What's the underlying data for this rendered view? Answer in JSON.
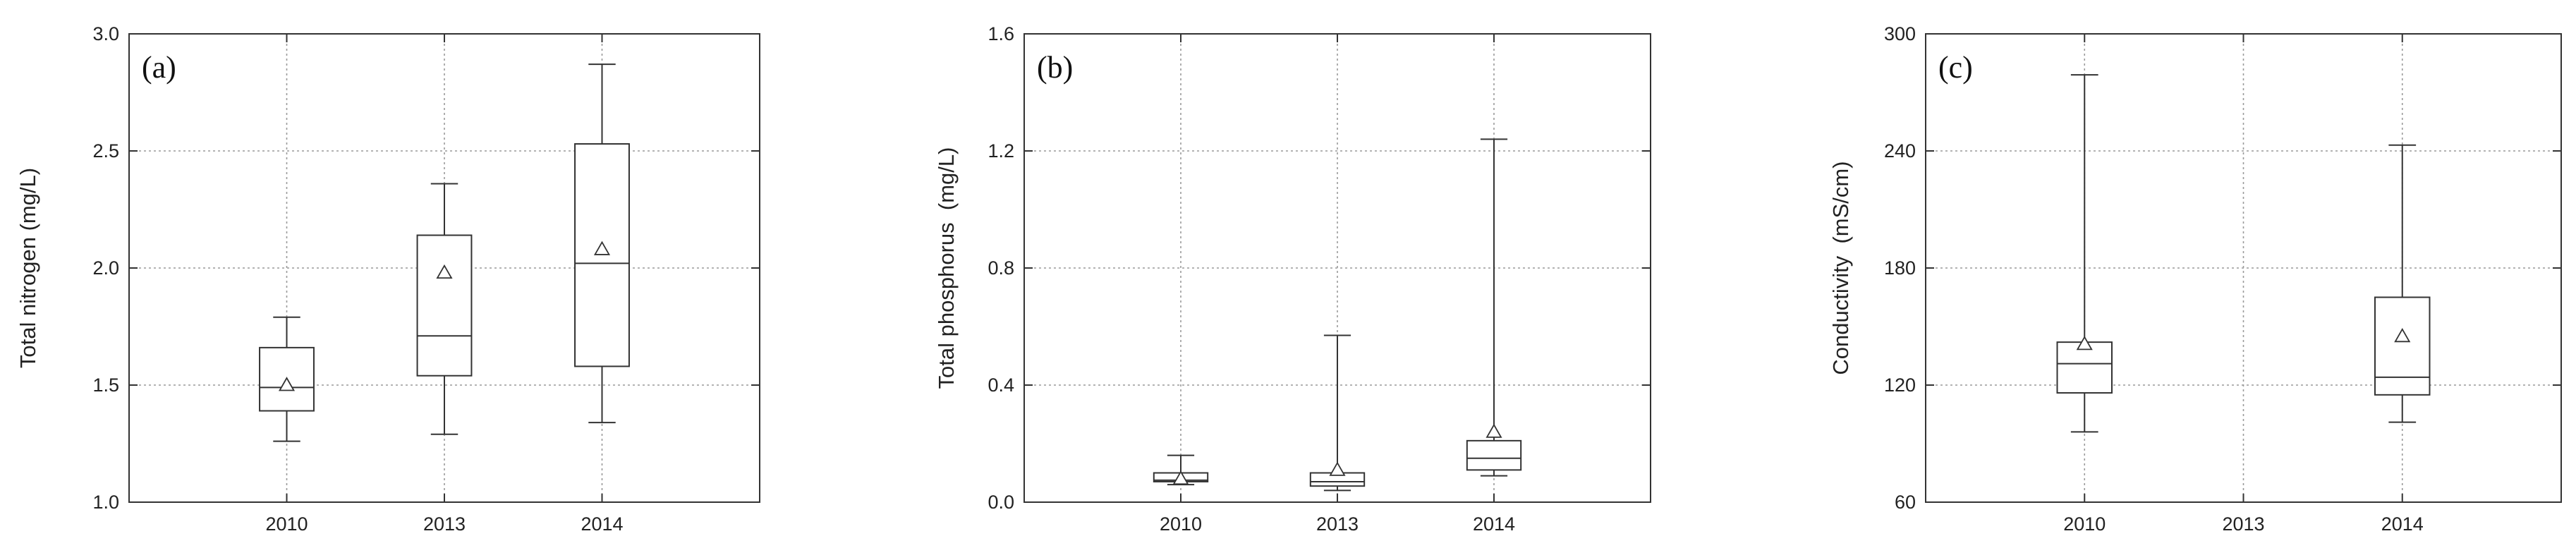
{
  "chart_data": [
    {
      "type": "box",
      "panel_label": "(a)",
      "ylabel": "Total nitrogen (mg/L)",
      "categories": [
        "2010",
        "2013",
        "2014"
      ],
      "ylim": [
        1.0,
        3.0
      ],
      "yticks": [
        "1.0",
        "1.5",
        "2.0",
        "2.5",
        "3.0"
      ],
      "grid": true,
      "boxes": [
        {
          "min": 1.26,
          "q1": 1.39,
          "median": 1.49,
          "q3": 1.66,
          "max": 1.79,
          "mean": 1.5
        },
        {
          "min": 1.29,
          "q1": 1.54,
          "median": 1.71,
          "q3": 2.14,
          "max": 2.36,
          "mean": 1.98
        },
        {
          "min": 1.34,
          "q1": 1.58,
          "median": 2.02,
          "q3": 2.53,
          "max": 2.87,
          "mean": 2.08
        }
      ]
    },
    {
      "type": "box",
      "panel_label": "(b)",
      "ylabel": "Total phosphorus  (mg/L)",
      "categories": [
        "2010",
        "2013",
        "2014"
      ],
      "ylim": [
        0.0,
        1.6
      ],
      "yticks": [
        "0.0",
        "0.4",
        "0.8",
        "1.2",
        "1.6"
      ],
      "grid": true,
      "boxes": [
        {
          "min": 0.06,
          "q1": 0.07,
          "median": 0.075,
          "q3": 0.1,
          "max": 0.16,
          "mean": 0.08
        },
        {
          "min": 0.04,
          "q1": 0.055,
          "median": 0.07,
          "q3": 0.1,
          "max": 0.57,
          "mean": 0.11
        },
        {
          "min": 0.09,
          "q1": 0.11,
          "median": 0.15,
          "q3": 0.21,
          "max": 1.24,
          "mean": 0.24
        }
      ]
    },
    {
      "type": "box",
      "panel_label": "(c)",
      "ylabel": "Conductivity  (mS/cm)",
      "categories": [
        "2010",
        "2013",
        "2014"
      ],
      "ylim": [
        60,
        300
      ],
      "yticks": [
        "60",
        "120",
        "180",
        "240",
        "300"
      ],
      "grid": true,
      "boxes": [
        {
          "min": 96,
          "q1": 116,
          "median": 131,
          "q3": 142,
          "max": 279,
          "mean": 141
        },
        null,
        {
          "min": 101,
          "q1": 115,
          "median": 124,
          "q3": 165,
          "max": 243,
          "mean": 145
        }
      ]
    }
  ]
}
